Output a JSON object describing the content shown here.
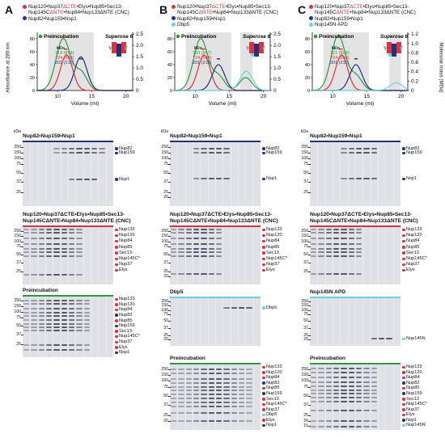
{
  "panels": [
    {
      "letter": "A",
      "legend": [
        {
          "color": "#e0303a",
          "text_parts": [
            "Nup120•Nup37",
            "ΔCTE",
            "•Elys•Nup85•Sec13-"
          ]
        },
        {
          "color": null,
          "text_parts": [
            "Nup145C",
            "ΔNTE",
            "•Nup84•Nup133ΔNTE (CNC)"
          ]
        },
        {
          "color": "#22337d",
          "text_parts": [
            "Nup82•Nup159•Nsp1"
          ]
        }
      ],
      "precub_label": "Preincubation",
      "superose": "Superose 6",
      "kda_label": "kDa",
      "kda_values": [
        {
          "color": "#2e9a3a",
          "text": "719 (894)"
        },
        {
          "color": "#e0303a",
          "text": "724 (683)"
        },
        {
          "color": "#22337d",
          "text": "201 (211)"
        }
      ],
      "gels": [
        {
          "title": "Nup82•Nup159•Nsp1",
          "bands": [
            "Nup82",
            "Nup159",
            "Nsp1"
          ]
        },
        {
          "title_l1": "Nup120•Nup37ΔCTE•Elys•Nup85•Sec13-",
          "title_l2": "Nup145CΔNTE•Nup84•Nup133ΔNTE (CNC)",
          "bands": [
            "Nup133",
            "Nup120",
            "Nup84",
            "Nup85",
            "Sec13-",
            "Nup145C*",
            "Nup37",
            "Elys"
          ]
        },
        {
          "title": "Preincubation",
          "bands": [
            "Nup133",
            "Nup120",
            "Nup84",
            "Nup82",
            "Nup85",
            "Nup159",
            "Sec13-",
            "Nup145C*",
            "Nup37",
            "Elys",
            "Nsp1"
          ]
        }
      ]
    },
    {
      "letter": "B",
      "legend": [
        {
          "color": "#e0303a",
          "text_parts": [
            "Nup120•Nup37",
            "ΔCTE",
            "•Elys•Nup85•Sec13-"
          ]
        },
        {
          "color": null,
          "text_parts": [
            "Nup145C",
            "ΔNTE",
            "•Nup84•Nup133ΔNTE (CNC)"
          ]
        },
        {
          "color": "#22337d",
          "text_parts": [
            "Nup82•Nup159•Nsp1"
          ]
        },
        {
          "color": "#6fcfe0",
          "text_parts": [
            "Dbp5"
          ]
        }
      ],
      "precub_label": "Preincubation",
      "superose": "Superose 6",
      "kda_label": "kDa",
      "kda_values": [
        {
          "color": "#2e9a3a",
          "text": "733 (947)"
        },
        {
          "color": "#e0303a",
          "text": "724 (683)"
        },
        {
          "color": "#22337d",
          "text": "201 (211)"
        }
      ],
      "gels": [
        {
          "title": "Nup82•Nup159•Nsp1",
          "bands": [
            "Nup82",
            "Nup159",
            "Nsp1"
          ]
        },
        {
          "title_l1": "Nup120•Nup37ΔCTE•Elys•Nup85•Sec13-",
          "title_l2": "Nup145CΔNTE•Nup84•Nup133ΔNTE (CNC)",
          "bands": [
            "Nup133",
            "Nup120",
            "Nup84",
            "Nup85",
            "Sec13",
            "Nup145C*",
            "Nup37",
            "Elys"
          ]
        },
        {
          "title": "Dbp5",
          "bands": [
            "Dbp5"
          ]
        },
        {
          "title": "Preincubation",
          "bands": [
            "Nup133",
            "Nup120",
            "Nup84",
            "Nup82",
            "Nup85",
            "Nup159",
            "Sec13",
            "Nup145C*",
            "Nup37",
            "Dbp5",
            "Elys",
            "Nsp1"
          ]
        }
      ]
    },
    {
      "letter": "C",
      "legend": [
        {
          "color": "#e0303a",
          "text_parts": [
            "Nup120•Nup37",
            "ΔCTE",
            "•Elys•Nup85•Sec13-"
          ]
        },
        {
          "color": null,
          "text_parts": [
            "Nup145C",
            "ΔNTE",
            "•Nup84•Nup133ΔNTE (CNC)"
          ]
        },
        {
          "color": "#22337d",
          "text_parts": [
            "Nup82•Nup159•Nsp1"
          ]
        },
        {
          "color": "#6fcfe0",
          "text_parts": [
            "Nup145N APD"
          ]
        }
      ],
      "precub_label": "Preincubation",
      "superose": "Superose 6",
      "kda_label": "kDa",
      "kda_values": [
        {
          "color": "#2e9a3a",
          "text": "721 (909)"
        },
        {
          "color": "#e0303a",
          "text": "724 (683)"
        },
        {
          "color": "#22337d",
          "text": "201 (211)"
        }
      ],
      "gels": [
        {
          "title": "Nup82•Nup159•Nsp1",
          "bands": [
            "Nup82",
            "Nup159",
            "Nsp1"
          ]
        },
        {
          "title_l1": "Nup120•Nup37ΔCTE•Elys•Nup85•Sec13-",
          "title_l2": "Nup145CΔNTE•Nup84•Nup133ΔNTE (CNC)",
          "bands": [
            "Nup133",
            "Nup120",
            "Nup84",
            "Nup85",
            "Sec13",
            "Nup145C*",
            "Nup37",
            "Elys"
          ]
        },
        {
          "title": "Nup145N APD",
          "bands": [
            "Nup145N"
          ]
        },
        {
          "title": "Preincubation",
          "bands": [
            "Nup133",
            "Nup120",
            "Nup84",
            "Nup82",
            "Nup85",
            "Nup159",
            "Sec13",
            "Nup145C*",
            "Nup37",
            "Elys",
            "Nsp1",
            "Nup145N"
          ]
        }
      ]
    }
  ],
  "axis": {
    "ylabel": "Absorbance at 280 nm",
    "ylabel_right": "Molecular mass (MDa)",
    "xlabel": "Volume (ml)",
    "xticks": [
      "10",
      "15",
      "20"
    ],
    "yticks_left": [
      "0",
      "20",
      "40",
      "60",
      "80"
    ],
    "yticks_right": [
      "0",
      "0.5",
      "1.0",
      "1.5",
      "2.0",
      "2.5"
    ],
    "yticks_right_c": [
      "0",
      "0.2",
      "0.4",
      "0.6",
      "0.8",
      "1.0",
      "1.2"
    ]
  },
  "kda_marker_label": "kDa",
  "mw_markers": [
    "250",
    "150",
    "100",
    "75",
    "50",
    "37",
    "25",
    "20",
    "15"
  ],
  "chart_data": [
    {
      "type": "line",
      "title": "",
      "xlabel": "Volume (ml)",
      "ylabel": "Absorbance at 280 nm",
      "xlim": [
        7,
        21
      ],
      "ylim": [
        0,
        90
      ],
      "series": [
        {
          "name": "Preincubation",
          "color": "#2e9a3a",
          "peaks": [
            {
              "x": 10.8,
              "y": 80
            },
            {
              "x": 13.4,
              "y": 28
            }
          ]
        },
        {
          "name": "CNC",
          "color": "#e0303a",
          "peaks": [
            {
              "x": 11.3,
              "y": 55
            }
          ]
        },
        {
          "name": "Nup82•Nup159•Nsp1",
          "color": "#22337d",
          "peaks": [
            {
              "x": 13.4,
              "y": 52
            }
          ]
        }
      ]
    },
    {
      "type": "line",
      "title": "",
      "xlabel": "Volume (ml)",
      "ylabel": "",
      "xlim": [
        7,
        21
      ],
      "ylim": [
        0,
        90
      ],
      "series": [
        {
          "name": "Preincubation",
          "color": "#2e9a3a",
          "peaks": [
            {
              "x": 10.8,
              "y": 80
            },
            {
              "x": 13.4,
              "y": 22
            },
            {
              "x": 17.4,
              "y": 20
            }
          ]
        },
        {
          "name": "CNC",
          "color": "#e0303a",
          "peaks": [
            {
              "x": 11.3,
              "y": 55
            }
          ]
        },
        {
          "name": "Nup82•Nup159•Nsp1",
          "color": "#22337d",
          "peaks": [
            {
              "x": 13.4,
              "y": 40
            }
          ]
        },
        {
          "name": "Dbp5",
          "color": "#6fcfe0",
          "peaks": [
            {
              "x": 17.5,
              "y": 30
            }
          ]
        }
      ]
    },
    {
      "type": "line",
      "title": "",
      "xlabel": "Volume (ml)",
      "ylabel": "",
      "xlim": [
        7,
        21
      ],
      "ylim": [
        0,
        90
      ],
      "series": [
        {
          "name": "Preincubation",
          "color": "#2e9a3a",
          "peaks": [
            {
              "x": 10.8,
              "y": 85
            },
            {
              "x": 13.4,
              "y": 22
            }
          ]
        },
        {
          "name": "CNC",
          "color": "#e0303a",
          "peaks": [
            {
              "x": 11.3,
              "y": 55
            }
          ]
        },
        {
          "name": "Nup82•Nup159•Nsp1",
          "color": "#22337d",
          "peaks": [
            {
              "x": 13.4,
              "y": 40
            }
          ]
        },
        {
          "name": "Nup145N APD",
          "color": "#6fcfe0",
          "peaks": [
            {
              "x": 19.3,
              "y": 12
            }
          ]
        }
      ]
    }
  ]
}
